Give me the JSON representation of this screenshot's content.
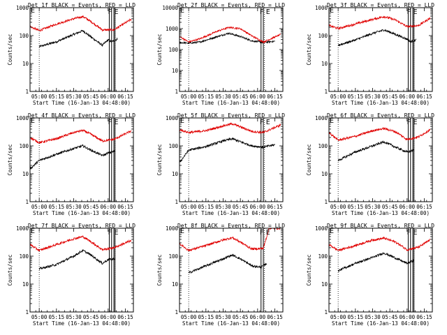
{
  "chart_data": [
    {
      "type": "line",
      "title": "Det 1f BLACK = Events, RED = LLD",
      "xlabel": "Start Time (16-Jan-13 04:48:00)",
      "ylabel": "Counts/sec",
      "log_y": true,
      "ylim": [
        1,
        1000
      ],
      "xlim": [
        "04:52",
        "06:22"
      ],
      "x_ticks": [
        "05:00",
        "05:15",
        "05:30",
        "05:45",
        "06:00",
        "06:15"
      ],
      "y_ticks": [
        "1",
        "10",
        "100",
        "1000"
      ],
      "flags": [
        "F",
        "E"
      ],
      "annotations": {
        "dotted_lines": [
          "05:00",
          "06:06"
        ],
        "boxes": [
          [
            "06:01",
            "06:03"
          ],
          [
            "06:05",
            "06:06"
          ]
        ]
      },
      "series": [
        {
          "name": "BLACK = Events",
          "color": "#000000",
          "x": [
            "05:00",
            "05:15",
            "05:30",
            "05:38",
            "05:45",
            "05:55",
            "06:00",
            "06:03",
            "06:08"
          ],
          "y": [
            40,
            60,
            110,
            150,
            90,
            45,
            70,
            60,
            75
          ]
        },
        {
          "name": "RED = LLD",
          "color": "#e00000",
          "x": [
            "04:52",
            "05:00",
            "05:15",
            "05:30",
            "05:38",
            "05:45",
            "05:55",
            "06:05",
            "06:20"
          ],
          "y": [
            210,
            150,
            260,
            400,
            480,
            320,
            160,
            160,
            380
          ]
        }
      ]
    },
    {
      "type": "line",
      "title": "Det 2f BLACK = Events, RED = LLD",
      "xlabel": "Start Time (16-Jan-13 04:48:00)",
      "ylabel": "Counts/sec",
      "log_y": true,
      "ylim": [
        1,
        10000
      ],
      "xlim": [
        "04:52",
        "06:22"
      ],
      "x_ticks": [
        "05:00",
        "05:15",
        "05:30",
        "05:45",
        "06:00",
        "06:15"
      ],
      "y_ticks": [
        "1",
        "10",
        "100",
        "1000",
        "10000"
      ],
      "flags": [
        "F",
        "E"
      ],
      "annotations": {
        "dotted_lines": [
          "05:00",
          "06:06"
        ],
        "boxes": [
          [
            "06:03",
            "06:05"
          ]
        ]
      },
      "series": [
        {
          "name": "BLACK = Events",
          "color": "#000000",
          "x": [
            "04:52",
            "05:00",
            "05:10",
            "05:25",
            "05:35",
            "05:45",
            "05:55",
            "06:05",
            "06:15"
          ],
          "y": [
            220,
            200,
            230,
            420,
            600,
            420,
            260,
            220,
            250
          ]
        },
        {
          "name": "RED = LLD",
          "color": "#e00000",
          "x": [
            "04:52",
            "05:00",
            "05:10",
            "05:25",
            "05:35",
            "05:45",
            "05:55",
            "06:05",
            "06:20"
          ],
          "y": [
            420,
            230,
            330,
            750,
            1150,
            1000,
            450,
            230,
            520
          ]
        }
      ]
    },
    {
      "type": "line",
      "title": "Det 3f BLACK = Events, RED = LLD",
      "xlabel": "Start Time (16-Jan-13 04:48:00)",
      "ylabel": "Counts/sec",
      "log_y": true,
      "ylim": [
        1,
        1000
      ],
      "xlim": [
        "04:52",
        "06:22"
      ],
      "x_ticks": [
        "05:00",
        "05:15",
        "05:30",
        "05:45",
        "06:00",
        "06:15"
      ],
      "y_ticks": [
        "1",
        "10",
        "100",
        "1000"
      ],
      "flags": [
        "F",
        "E"
      ],
      "annotations": {
        "dotted_lines": [
          "05:00",
          "06:06"
        ],
        "boxes": [
          [
            "06:01",
            "06:03"
          ],
          [
            "06:05",
            "06:06"
          ]
        ]
      },
      "series": [
        {
          "name": "BLACK = Events",
          "color": "#000000",
          "x": [
            "05:00",
            "05:15",
            "05:30",
            "05:40",
            "05:50",
            "06:00",
            "06:03",
            "06:08"
          ],
          "y": [
            45,
            70,
            120,
            160,
            110,
            75,
            60,
            70
          ]
        },
        {
          "name": "RED = LLD",
          "color": "#e00000",
          "x": [
            "04:52",
            "05:00",
            "05:15",
            "05:30",
            "05:40",
            "05:50",
            "06:00",
            "06:10",
            "06:20"
          ],
          "y": [
            230,
            180,
            260,
            380,
            480,
            360,
            210,
            230,
            420
          ]
        }
      ]
    },
    {
      "type": "line",
      "title": "Det 4f BLACK = Events, RED = LLD",
      "xlabel": "Start Time (16-Jan-13 04:48:00)",
      "ylabel": "Counts/sec",
      "log_y": true,
      "ylim": [
        1,
        1000
      ],
      "xlim": [
        "04:52",
        "06:22"
      ],
      "x_ticks": [
        "05:00",
        "05:15",
        "05:30",
        "05:45",
        "06:00",
        "06:15"
      ],
      "y_ticks": [
        "1",
        "10",
        "100",
        "1000"
      ],
      "flags": [
        "F",
        "E"
      ],
      "annotations": {
        "dotted_lines": [
          "05:00",
          "06:06"
        ],
        "boxes": [
          [
            "06:01",
            "06:03"
          ],
          [
            "06:05",
            "06:06"
          ]
        ]
      },
      "series": [
        {
          "name": "BLACK = Events",
          "color": "#000000",
          "x": [
            "04:52",
            "05:00",
            "05:15",
            "05:30",
            "05:38",
            "05:45",
            "05:55",
            "06:00",
            "06:06"
          ],
          "y": [
            15,
            30,
            50,
            80,
            100,
            70,
            45,
            55,
            65
          ]
        },
        {
          "name": "RED = LLD",
          "color": "#e00000",
          "x": [
            "04:52",
            "05:00",
            "05:15",
            "05:30",
            "05:38",
            "05:45",
            "05:55",
            "06:05",
            "06:20"
          ],
          "y": [
            200,
            130,
            180,
            300,
            360,
            260,
            150,
            170,
            340
          ]
        }
      ]
    },
    {
      "type": "line",
      "title": "Det 5f BLACK = Events, RED = LLD",
      "xlabel": "Start Time (16-Jan-13 04:48:00)",
      "ylabel": "Counts/sec",
      "log_y": true,
      "ylim": [
        1,
        1000
      ],
      "xlim": [
        "04:52",
        "06:22"
      ],
      "x_ticks": [
        "05:00",
        "05:15",
        "05:30",
        "05:45",
        "06:00",
        "06:15"
      ],
      "y_ticks": [
        "1",
        "10",
        "100",
        "1000"
      ],
      "flags": [
        "F",
        "E"
      ],
      "annotations": {
        "dotted_lines": [
          "05:00",
          "06:06"
        ],
        "boxes": [
          [
            "06:03",
            "06:05"
          ]
        ]
      },
      "series": [
        {
          "name": "BLACK = Events",
          "color": "#000000",
          "x": [
            "04:52",
            "05:00",
            "05:15",
            "05:30",
            "05:38",
            "05:45",
            "05:55",
            "06:05",
            "06:15"
          ],
          "y": [
            25,
            70,
            95,
            150,
            180,
            140,
            100,
            90,
            110
          ]
        },
        {
          "name": "RED = LLD",
          "color": "#e00000",
          "x": [
            "04:52",
            "05:00",
            "05:15",
            "05:30",
            "05:38",
            "05:45",
            "05:55",
            "06:05",
            "06:20"
          ],
          "y": [
            380,
            300,
            350,
            520,
            620,
            480,
            330,
            300,
            560
          ]
        }
      ]
    },
    {
      "type": "line",
      "title": "Det 6f BLACK = Events, RED = LLD",
      "xlabel": "Start Time (16-Jan-13 04:48:00)",
      "ylabel": "Counts/sec",
      "log_y": true,
      "ylim": [
        1,
        1000
      ],
      "xlim": [
        "04:52",
        "06:22"
      ],
      "x_ticks": [
        "05:00",
        "05:15",
        "05:30",
        "05:45",
        "06:00",
        "06:15"
      ],
      "y_ticks": [
        "1",
        "10",
        "100",
        "1000"
      ],
      "flags": [
        "F",
        "E"
      ],
      "annotations": {
        "dotted_lines": [
          "05:00",
          "06:06"
        ],
        "boxes": [
          [
            "06:01",
            "06:03"
          ],
          [
            "06:05",
            "06:06"
          ]
        ]
      },
      "series": [
        {
          "name": "BLACK = Events",
          "color": "#000000",
          "x": [
            "05:00",
            "05:15",
            "05:30",
            "05:40",
            "05:50",
            "06:00",
            "06:06"
          ],
          "y": [
            30,
            60,
            100,
            140,
            90,
            60,
            70
          ]
        },
        {
          "name": "RED = LLD",
          "color": "#e00000",
          "x": [
            "04:52",
            "05:00",
            "05:15",
            "05:30",
            "05:40",
            "05:50",
            "06:00",
            "06:10",
            "06:20"
          ],
          "y": [
            300,
            160,
            220,
            350,
            420,
            320,
            170,
            210,
            380
          ]
        }
      ]
    },
    {
      "type": "line",
      "title": "Det 7f BLACK = Events, RED = LLD",
      "xlabel": "Start Time (16-Jan-13 04:48:00)",
      "ylabel": "Counts/sec",
      "log_y": true,
      "ylim": [
        1,
        1000
      ],
      "xlim": [
        "04:52",
        "06:22"
      ],
      "x_ticks": [
        "05:00",
        "05:15",
        "05:30",
        "05:45",
        "06:00",
        "06:15"
      ],
      "y_ticks": [
        "1",
        "10",
        "100",
        "1000"
      ],
      "flags": [
        "F",
        "E"
      ],
      "annotations": {
        "dotted_lines": [
          "05:00",
          "06:06"
        ],
        "boxes": [
          [
            "06:01",
            "06:03"
          ],
          [
            "06:05",
            "06:06"
          ]
        ]
      },
      "series": [
        {
          "name": "BLACK = Events",
          "color": "#000000",
          "x": [
            "05:00",
            "05:15",
            "05:30",
            "05:38",
            "05:45",
            "05:55",
            "06:00",
            "06:06"
          ],
          "y": [
            35,
            50,
            100,
            160,
            110,
            55,
            75,
            80
          ]
        },
        {
          "name": "RED = LLD",
          "color": "#e00000",
          "x": [
            "04:52",
            "05:00",
            "05:15",
            "05:30",
            "05:38",
            "05:45",
            "05:55",
            "06:05",
            "06:20"
          ],
          "y": [
            260,
            160,
            260,
            420,
            500,
            330,
            170,
            200,
            360
          ]
        }
      ]
    },
    {
      "type": "line",
      "title": "Det 8f BLACK = Events, RED = LLD",
      "xlabel": "Start Time (16-Jan-13 04:48:00)",
      "ylabel": "Counts/sec",
      "log_y": true,
      "ylim": [
        1,
        1000
      ],
      "xlim": [
        "04:52",
        "06:22"
      ],
      "x_ticks": [
        "05:00",
        "05:15",
        "05:30",
        "05:45",
        "06:00",
        "06:15"
      ],
      "y_ticks": [
        "1",
        "10",
        "100",
        "1000"
      ],
      "flags": [
        "F",
        "E"
      ],
      "annotations": {
        "dotted_lines": [
          "05:00",
          "06:06"
        ],
        "boxes": [
          [
            "06:03",
            "06:05"
          ]
        ]
      },
      "series": [
        {
          "name": "BLACK = Events",
          "color": "#000000",
          "x": [
            "05:00",
            "05:15",
            "05:30",
            "05:38",
            "05:45",
            "05:55",
            "06:03",
            "06:08"
          ],
          "y": [
            25,
            45,
            80,
            110,
            80,
            45,
            40,
            55
          ]
        },
        {
          "name": "RED = LLD",
          "color": "#e00000",
          "x": [
            "04:52",
            "05:00",
            "05:15",
            "05:30",
            "05:38",
            "05:45",
            "05:55",
            "06:05",
            "06:10",
            "06:20"
          ],
          "y": [
            280,
            160,
            240,
            380,
            460,
            320,
            180,
            190,
            1000,
            1000
          ]
        }
      ]
    },
    {
      "type": "line",
      "title": "Det 9f BLACK = Events, RED = LLD",
      "xlabel": "Start Time (16-Jan-13 04:48:00)",
      "ylabel": "Counts/sec",
      "log_y": true,
      "ylim": [
        1,
        1000
      ],
      "xlim": [
        "04:52",
        "06:22"
      ],
      "x_ticks": [
        "05:00",
        "05:15",
        "05:30",
        "05:45",
        "06:00",
        "06:15"
      ],
      "y_ticks": [
        "1",
        "10",
        "100",
        "1000"
      ],
      "flags": [
        "F",
        "E"
      ],
      "annotations": {
        "dotted_lines": [
          "05:00",
          "06:06"
        ],
        "boxes": [
          [
            "06:01",
            "06:03"
          ],
          [
            "06:05",
            "06:06"
          ]
        ]
      },
      "series": [
        {
          "name": "BLACK = Events",
          "color": "#000000",
          "x": [
            "05:00",
            "05:15",
            "05:30",
            "05:40",
            "05:50",
            "06:00",
            "06:06"
          ],
          "y": [
            30,
            55,
            90,
            130,
            85,
            55,
            70
          ]
        },
        {
          "name": "RED = LLD",
          "color": "#e00000",
          "x": [
            "04:52",
            "05:00",
            "05:15",
            "05:30",
            "05:40",
            "05:50",
            "06:00",
            "06:10",
            "06:20"
          ],
          "y": [
            260,
            160,
            240,
            380,
            440,
            320,
            170,
            210,
            380
          ]
        }
      ]
    }
  ]
}
